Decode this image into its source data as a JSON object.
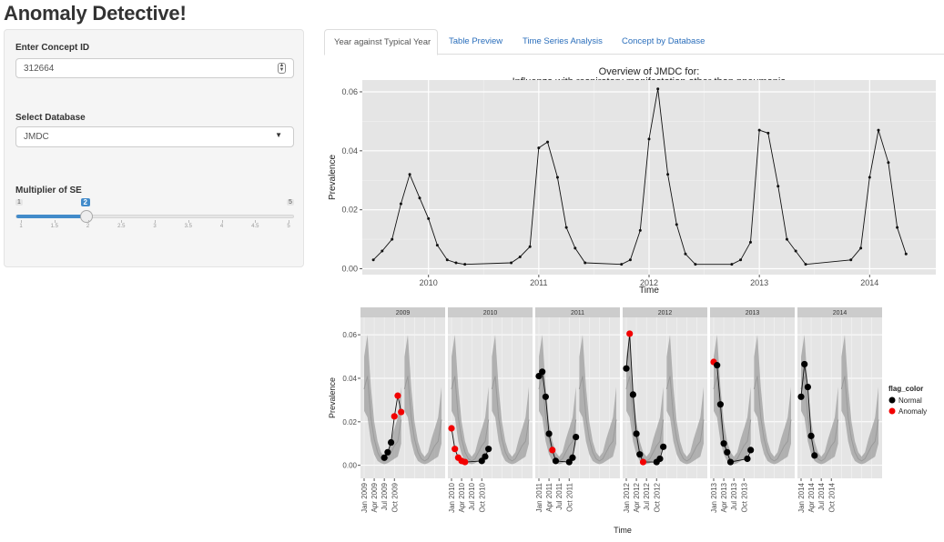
{
  "app": {
    "title": "Anomaly Detective!"
  },
  "sidebar": {
    "concept": {
      "label": "Enter Concept ID",
      "value": "312664"
    },
    "database": {
      "label": "Select Database",
      "value": "JMDC"
    },
    "multiplier": {
      "label": "Multiplier of SE",
      "min": "1",
      "max": "5",
      "value": "2",
      "min_value": 1,
      "max_value": 5,
      "current": 2,
      "grid_labels": [
        "1",
        "1.5",
        "2",
        "2.5",
        "3",
        "3.5",
        "4",
        "4.5",
        "5"
      ]
    }
  },
  "tabs": [
    {
      "label": "Year against Typical Year",
      "active": true
    },
    {
      "label": "Table Preview",
      "active": false
    },
    {
      "label": "Time Series Analysis",
      "active": false
    },
    {
      "label": "Concept by Database",
      "active": false
    }
  ],
  "colors": {
    "accent": "#428bca",
    "link": "#2a6ebb",
    "panel_bg": "#e5e5e5",
    "normal": "#000000",
    "anomaly": "#f20000"
  },
  "chart_data": [
    {
      "type": "line",
      "title": "Overview of JMDC for:\nInfluenza with respiratory manifestation other than pneumonia",
      "title_lines": [
        "Overview of JMDC for:",
        "Influenza with respiratory manifestation other than pneumonia"
      ],
      "xlabel": "Time",
      "ylabel": "Prevalence",
      "xlim": [
        2009.4,
        2014.6
      ],
      "ylim": [
        -0.002,
        0.064
      ],
      "x_ticks": [
        2010,
        2011,
        2012,
        2013,
        2014
      ],
      "x_tick_labels": [
        "2010",
        "2011",
        "2012",
        "2013",
        "2014"
      ],
      "y_ticks": [
        0.0,
        0.02,
        0.04,
        0.06
      ],
      "y_tick_labels": [
        "0.00",
        "0.02",
        "0.04",
        "0.06"
      ],
      "grid": true,
      "x": [
        2009.5,
        2009.58,
        2009.67,
        2009.75,
        2009.83,
        2009.92,
        2010.0,
        2010.08,
        2010.17,
        2010.25,
        2010.33,
        2010.75,
        2010.83,
        2010.92,
        2011.0,
        2011.08,
        2011.17,
        2011.25,
        2011.33,
        2011.42,
        2011.75,
        2011.83,
        2011.92,
        2012.0,
        2012.08,
        2012.17,
        2012.25,
        2012.33,
        2012.42,
        2012.75,
        2012.83,
        2012.92,
        2013.0,
        2013.08,
        2013.17,
        2013.25,
        2013.33,
        2013.42,
        2013.83,
        2013.92,
        2014.0,
        2014.08,
        2014.17,
        2014.25,
        2014.33
      ],
      "y": [
        0.003,
        0.006,
        0.01,
        0.022,
        0.032,
        0.024,
        0.017,
        0.008,
        0.003,
        0.002,
        0.0015,
        0.002,
        0.004,
        0.0075,
        0.041,
        0.043,
        0.031,
        0.014,
        0.007,
        0.002,
        0.0015,
        0.003,
        0.013,
        0.044,
        0.061,
        0.032,
        0.015,
        0.005,
        0.0015,
        0.0015,
        0.003,
        0.009,
        0.047,
        0.046,
        0.028,
        0.01,
        0.006,
        0.0015,
        0.003,
        0.007,
        0.031,
        0.047,
        0.036,
        0.014,
        0.005
      ]
    },
    {
      "type": "scatter",
      "ylabel": "Prevalence",
      "xlabel": "Time",
      "ylim": [
        -0.006,
        0.068
      ],
      "y_ticks": [
        0.0,
        0.02,
        0.04,
        0.06
      ],
      "y_tick_labels": [
        "0.00",
        "0.02",
        "0.04",
        "0.06"
      ],
      "legend": {
        "title": "flag_color",
        "position": "right",
        "entries": [
          {
            "label": "Normal",
            "color": "#000000"
          },
          {
            "label": "Anomaly",
            "color": "#f20000"
          }
        ]
      },
      "typical_year": {
        "months": [
          1,
          2,
          3,
          4,
          5,
          6,
          7,
          8,
          9,
          10,
          11,
          12
        ],
        "mean": [
          0.035,
          0.041,
          0.022,
          0.012,
          0.006,
          0.003,
          0.002,
          0.003,
          0.006,
          0.009,
          0.011,
          0.021
        ],
        "band_low": [
          0.025,
          0.022,
          0.011,
          0.005,
          0.002,
          0.001,
          0.0005,
          0.001,
          0.002,
          0.003,
          0.004,
          0.01
        ],
        "band_high": [
          0.05,
          0.06,
          0.036,
          0.02,
          0.011,
          0.006,
          0.004,
          0.006,
          0.012,
          0.017,
          0.022,
          0.036
        ]
      },
      "facets": [
        {
          "year": "2009",
          "x_tick_labels": [
            "Jan 2009",
            "Apr 2009",
            "Jul 2009",
            "Oct 2009"
          ],
          "points": [
            {
              "m": 7,
              "y": 0.0035,
              "flag": "Normal"
            },
            {
              "m": 8,
              "y": 0.006,
              "flag": "Normal"
            },
            {
              "m": 9,
              "y": 0.0105,
              "flag": "Normal"
            },
            {
              "m": 10,
              "y": 0.0225,
              "flag": "Anomaly"
            },
            {
              "m": 11,
              "y": 0.032,
              "flag": "Anomaly"
            },
            {
              "m": 12,
              "y": 0.0245,
              "flag": "Anomaly"
            }
          ]
        },
        {
          "year": "2010",
          "x_tick_labels": [
            "Jan 2010",
            "Apr 2010",
            "Jul 2010",
            "Oct 2010"
          ],
          "points": [
            {
              "m": 1,
              "y": 0.017,
              "flag": "Anomaly"
            },
            {
              "m": 2,
              "y": 0.0075,
              "flag": "Anomaly"
            },
            {
              "m": 3,
              "y": 0.0035,
              "flag": "Anomaly"
            },
            {
              "m": 4,
              "y": 0.002,
              "flag": "Anomaly"
            },
            {
              "m": 5,
              "y": 0.0015,
              "flag": "Anomaly"
            },
            {
              "m": 10,
              "y": 0.002,
              "flag": "Normal"
            },
            {
              "m": 11,
              "y": 0.004,
              "flag": "Normal"
            },
            {
              "m": 12,
              "y": 0.0075,
              "flag": "Normal"
            }
          ]
        },
        {
          "year": "2011",
          "x_tick_labels": [
            "Jan 2011",
            "Apr 2011",
            "Jul 2011",
            "Oct 2011"
          ],
          "points": [
            {
              "m": 1,
              "y": 0.041,
              "flag": "Normal"
            },
            {
              "m": 2,
              "y": 0.043,
              "flag": "Normal"
            },
            {
              "m": 3,
              "y": 0.0315,
              "flag": "Normal"
            },
            {
              "m": 4,
              "y": 0.0145,
              "flag": "Normal"
            },
            {
              "m": 5,
              "y": 0.007,
              "flag": "Anomaly"
            },
            {
              "m": 6,
              "y": 0.002,
              "flag": "Normal"
            },
            {
              "m": 10,
              "y": 0.0015,
              "flag": "Normal"
            },
            {
              "m": 11,
              "y": 0.0035,
              "flag": "Normal"
            },
            {
              "m": 12,
              "y": 0.013,
              "flag": "Normal"
            }
          ]
        },
        {
          "year": "2012",
          "x_tick_labels": [
            "Jan 2012",
            "Apr 2012",
            "Jul 2012",
            "Oct 2012"
          ],
          "points": [
            {
              "m": 1,
              "y": 0.0445,
              "flag": "Normal"
            },
            {
              "m": 2,
              "y": 0.0605,
              "flag": "Anomaly"
            },
            {
              "m": 3,
              "y": 0.0325,
              "flag": "Normal"
            },
            {
              "m": 4,
              "y": 0.0145,
              "flag": "Normal"
            },
            {
              "m": 5,
              "y": 0.005,
              "flag": "Normal"
            },
            {
              "m": 6,
              "y": 0.0015,
              "flag": "Anomaly"
            },
            {
              "m": 10,
              "y": 0.0015,
              "flag": "Normal"
            },
            {
              "m": 11,
              "y": 0.003,
              "flag": "Normal"
            },
            {
              "m": 12,
              "y": 0.0085,
              "flag": "Normal"
            }
          ]
        },
        {
          "year": "2013",
          "x_tick_labels": [
            "Jan 2013",
            "Apr 2013",
            "Jul 2013",
            "Oct 2013"
          ],
          "points": [
            {
              "m": 1,
              "y": 0.0475,
              "flag": "Anomaly"
            },
            {
              "m": 2,
              "y": 0.046,
              "flag": "Normal"
            },
            {
              "m": 3,
              "y": 0.028,
              "flag": "Normal"
            },
            {
              "m": 4,
              "y": 0.01,
              "flag": "Normal"
            },
            {
              "m": 5,
              "y": 0.006,
              "flag": "Normal"
            },
            {
              "m": 6,
              "y": 0.0015,
              "flag": "Normal"
            },
            {
              "m": 11,
              "y": 0.003,
              "flag": "Normal"
            },
            {
              "m": 12,
              "y": 0.007,
              "flag": "Normal"
            }
          ]
        },
        {
          "year": "2014",
          "x_tick_labels": [
            "Jan 2014",
            "Apr 2014",
            "Jul 2014",
            "Oct 2014"
          ],
          "points": [
            {
              "m": 1,
              "y": 0.0315,
              "flag": "Normal"
            },
            {
              "m": 2,
              "y": 0.0465,
              "flag": "Normal"
            },
            {
              "m": 3,
              "y": 0.036,
              "flag": "Normal"
            },
            {
              "m": 4,
              "y": 0.0135,
              "flag": "Normal"
            },
            {
              "m": 5,
              "y": 0.0045,
              "flag": "Normal"
            }
          ]
        }
      ]
    }
  ]
}
